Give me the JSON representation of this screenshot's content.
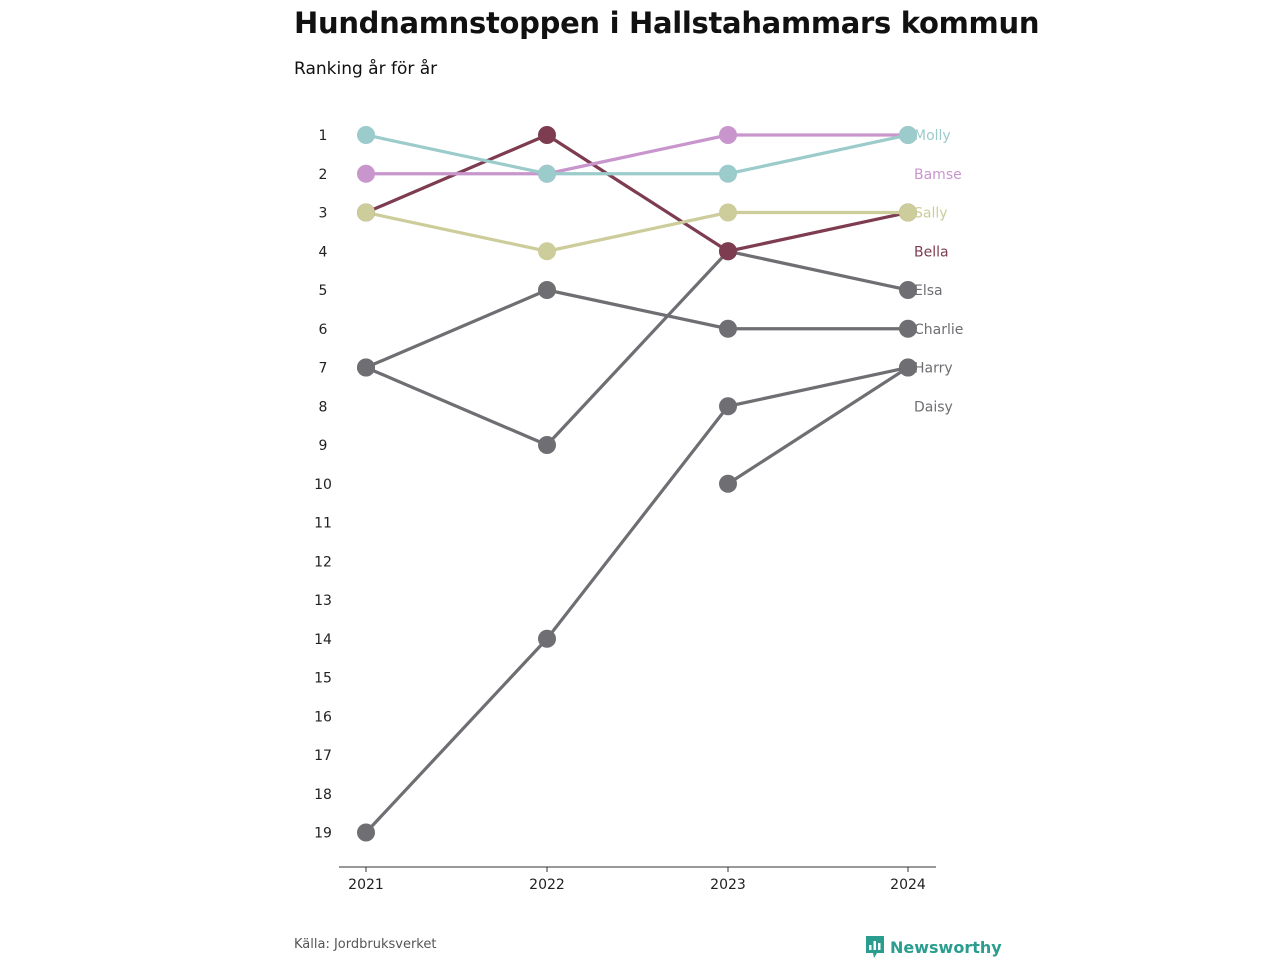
{
  "header": {
    "title": "Hundnamnstoppen i Hallstahammars kommun",
    "subtitle": "Ranking år för år"
  },
  "footer": {
    "source": "Källa: Jordbruksverket",
    "brand": "Newsworthy",
    "brand_icon": "newsworthy-logo-icon",
    "brand_color": "#2a9d8f"
  },
  "chart_data": {
    "type": "line",
    "subtype": "bump",
    "x": [
      "2021",
      "2022",
      "2023",
      "2024"
    ],
    "y_ticks": [
      1,
      2,
      3,
      4,
      5,
      6,
      7,
      8,
      9,
      10,
      11,
      12,
      13,
      14,
      15,
      16,
      17,
      18,
      19
    ],
    "y_reversed": true,
    "ylim": [
      1,
      19
    ],
    "grid": false,
    "legend": "direct labels at right end of lines",
    "series": [
      {
        "name": "Molly",
        "color": "#9ccbcb",
        "values": [
          1,
          2,
          2,
          1
        ]
      },
      {
        "name": "Bamse",
        "color": "#c896cd",
        "values": [
          2,
          2,
          1,
          1
        ]
      },
      {
        "name": "Sally",
        "color": "#cdcd9b",
        "values": [
          3,
          4,
          3,
          3
        ]
      },
      {
        "name": "Bella",
        "color": "#7d3c50",
        "values": [
          3,
          1,
          4,
          3
        ]
      },
      {
        "name": "Elsa",
        "color": "#6e6e73",
        "values": [
          7,
          9,
          4,
          5
        ]
      },
      {
        "name": "Charlie",
        "color": "#6e6e73",
        "values": [
          7,
          5,
          6,
          6
        ]
      },
      {
        "name": "Harry",
        "color": "#6e6e73",
        "values": [
          null,
          null,
          10,
          7
        ]
      },
      {
        "name": "Daisy",
        "color": "#6e6e73",
        "values": [
          19,
          14,
          8,
          7
        ]
      }
    ],
    "label_color_gray": "#6e6e73"
  }
}
